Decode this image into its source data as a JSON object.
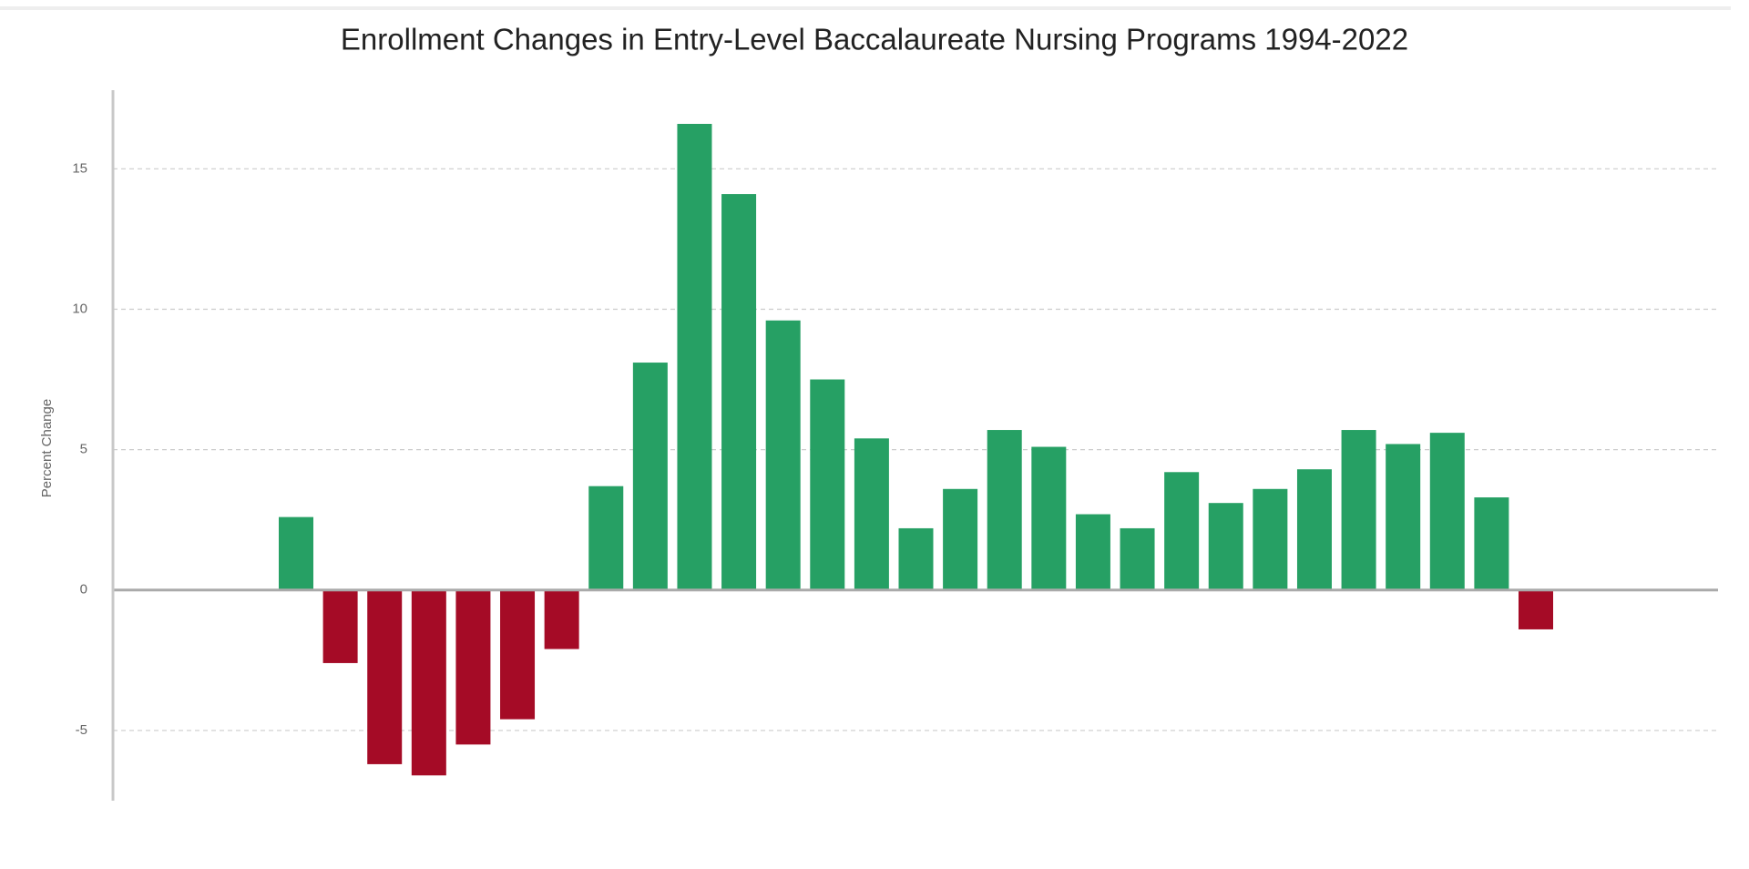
{
  "chart_data": {
    "type": "bar",
    "title": "Enrollment Changes in Entry-Level Baccalaureate Nursing Programs 1994-2022",
    "y_label": "Percent Change",
    "values": [
      2.6,
      -2.6,
      -6.2,
      -6.6,
      -5.5,
      -4.6,
      -2.1,
      3.7,
      8.1,
      16.6,
      14.1,
      9.6,
      7.5,
      5.4,
      2.2,
      3.6,
      5.7,
      5.1,
      2.7,
      2.2,
      4.2,
      3.1,
      3.6,
      4.3,
      5.7,
      5.2,
      5.6,
      3.3,
      -1.4
    ],
    "positive_color": "#26a064",
    "negative_color": "#a50b26",
    "ylim": [
      -7.5,
      17.8
    ],
    "yticks": [
      -5,
      0,
      5,
      10,
      15
    ],
    "grid": true
  }
}
